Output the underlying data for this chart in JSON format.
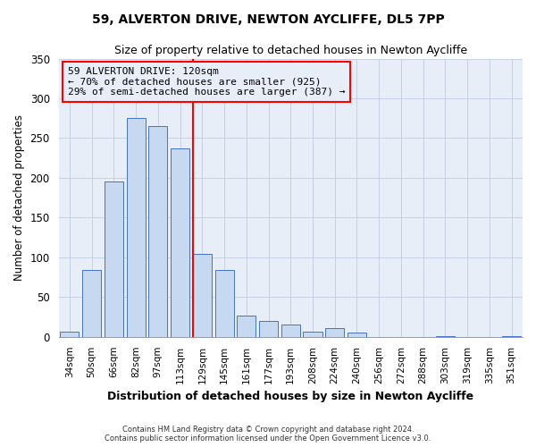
{
  "title": "59, ALVERTON DRIVE, NEWTON AYCLIFFE, DL5 7PP",
  "subtitle": "Size of property relative to detached houses in Newton Aycliffe",
  "xlabel": "Distribution of detached houses by size in Newton Aycliffe",
  "ylabel": "Number of detached properties",
  "bar_labels": [
    "34sqm",
    "50sqm",
    "66sqm",
    "82sqm",
    "97sqm",
    "113sqm",
    "129sqm",
    "145sqm",
    "161sqm",
    "177sqm",
    "193sqm",
    "208sqm",
    "224sqm",
    "240sqm",
    "256sqm",
    "272sqm",
    "288sqm",
    "303sqm",
    "319sqm",
    "335sqm",
    "351sqm"
  ],
  "bar_values": [
    6,
    84,
    196,
    275,
    265,
    237,
    104,
    84,
    27,
    20,
    15,
    7,
    11,
    5,
    0,
    0,
    0,
    1,
    0,
    0,
    1
  ],
  "bar_color": "#c6d9f1",
  "bar_edge_color": "#4472c4",
  "property_line_color": "red",
  "annotation_text": "59 ALVERTON DRIVE: 120sqm\n← 70% of detached houses are smaller (925)\n29% of semi-detached houses are larger (387) →",
  "annotation_box_color": "red",
  "ylim": [
    0,
    350
  ],
  "footer_line1": "Contains HM Land Registry data © Crown copyright and database right 2024.",
  "footer_line2": "Contains public sector information licensed under the Open Government Licence v3.0.",
  "bg_color": "#ffffff",
  "plot_bg_color": "#e8eef8",
  "grid_color": "#c0cce0"
}
